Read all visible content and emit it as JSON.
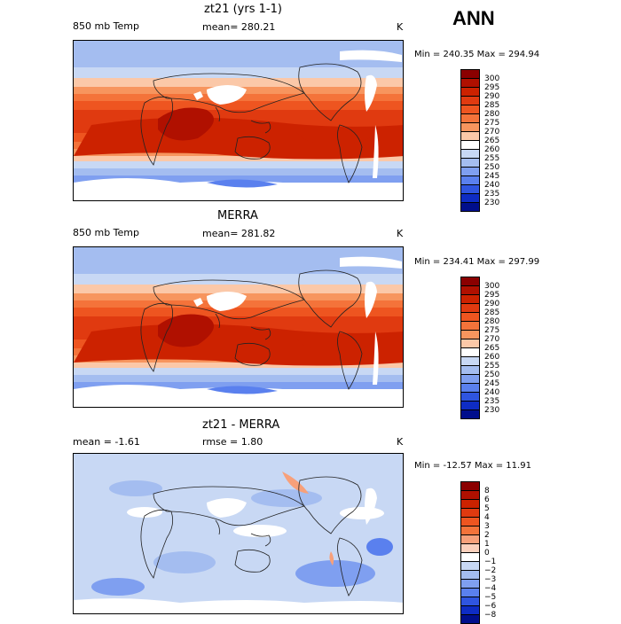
{
  "season": "ANN",
  "panels": [
    {
      "title": "zt21 (yrs 1-1)",
      "left_label": "850 mb Temp",
      "mid_label": "mean= 280.21",
      "unit": "K",
      "minmax": "Min = 240.35 Max = 294.94",
      "kind": "abs",
      "variant": 0
    },
    {
      "title": "MERRA",
      "left_label": "850 mb Temp",
      "mid_label": "mean= 281.82",
      "unit": "K",
      "minmax": "Min = 234.41 Max = 297.99",
      "kind": "abs",
      "variant": 1
    },
    {
      "title": "zt21 - MERRA",
      "left_label": "mean =   -1.61",
      "mid_label": "rmse =   1.80",
      "unit": "K",
      "minmax": "Min = -12.57 Max =  11.91",
      "kind": "diff",
      "variant": 2
    }
  ],
  "colorbars": {
    "abs": {
      "labels": [
        "300",
        "295",
        "290",
        "285",
        "280",
        "275",
        "270",
        "265",
        "260",
        "255",
        "250",
        "245",
        "240",
        "235",
        "230"
      ],
      "colors": [
        "#8b0000",
        "#b01000",
        "#cc2200",
        "#e03a10",
        "#ee5520",
        "#f4733a",
        "#f7955e",
        "#fbc8a8",
        "#ffffff",
        "#c8d8f4",
        "#a4bdf0",
        "#7f9ff0",
        "#5a80ee",
        "#2f55e0",
        "#0e2cc4",
        "#000e8c"
      ]
    },
    "diff": {
      "labels": [
        "8",
        "6",
        "5",
        "4",
        "3",
        "2",
        "1",
        "0",
        "−1",
        "−2",
        "−3",
        "−4",
        "−5",
        "−6",
        "−8"
      ],
      "colors": [
        "#8b0000",
        "#b01000",
        "#cc2200",
        "#e03a10",
        "#ee5520",
        "#f4733a",
        "#f7a07a",
        "#fbd0bc",
        "#ffffff",
        "#c8d8f4",
        "#a4bdf0",
        "#7f9ff0",
        "#5a80ee",
        "#2f55e0",
        "#0e2cc4",
        "#000e8c"
      ]
    }
  }
}
